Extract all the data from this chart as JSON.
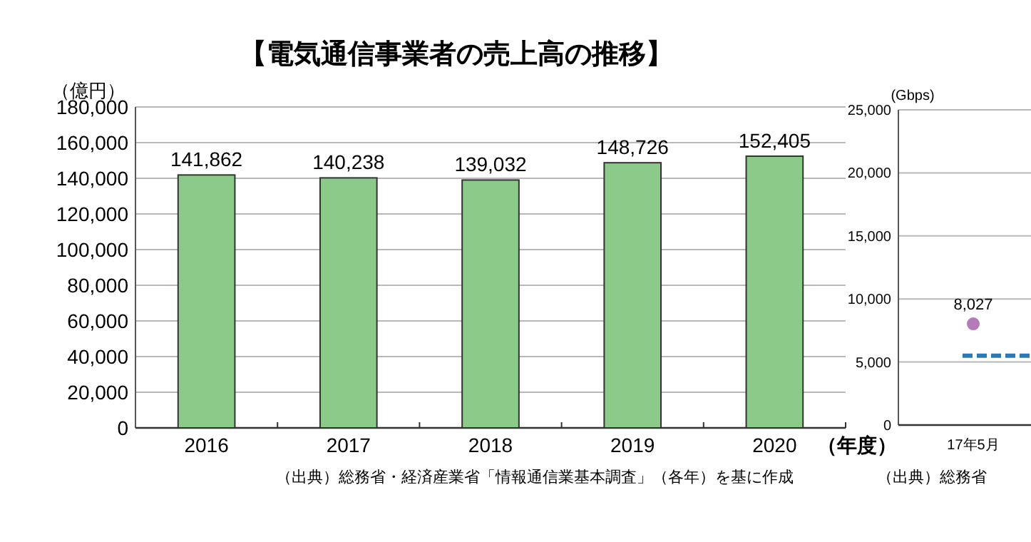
{
  "chart_data": [
    {
      "type": "bar",
      "title": "【電気通信事業者の売上高の推移】",
      "ylabel": "（億円）",
      "xlabel": "（年度）",
      "categories": [
        "2016",
        "2017",
        "2018",
        "2019",
        "2020"
      ],
      "series": [
        {
          "color": "#8cca8a",
          "values": [
            141862,
            140238,
            139032,
            148726,
            152405
          ],
          "value_labels": [
            "141,862",
            "140,238",
            "139,032",
            "148,726",
            "152,405"
          ]
        }
      ],
      "ylim": [
        0,
        180000
      ],
      "yticks": [
        {
          "value": 0,
          "label": "0"
        },
        {
          "value": 20000,
          "label": "20,000"
        },
        {
          "value": 40000,
          "label": "40,000"
        },
        {
          "value": 60000,
          "label": "60,000"
        },
        {
          "value": 80000,
          "label": "80,000"
        },
        {
          "value": 100000,
          "label": "100,000"
        },
        {
          "value": 120000,
          "label": "120,000"
        },
        {
          "value": 140000,
          "label": "140,000"
        },
        {
          "value": 160000,
          "label": "160,000"
        },
        {
          "value": 180000,
          "label": "180,000"
        }
      ],
      "grid": "y",
      "annotations": [
        "（出典）総務省・経済産業省「情報通信業基本調査」（各年）を基に作成"
      ]
    },
    {
      "type": "line",
      "ylabel": "(Gbps)",
      "categories": [
        "17年5月"
      ],
      "series": [
        {
          "color": "#b57ab8",
          "values": [
            8027
          ],
          "value_labels": [
            "8,027"
          ]
        }
      ],
      "marker": "circle",
      "ylim": [
        0,
        25000
      ],
      "yticks": [
        {
          "value": 0,
          "label": "0"
        },
        {
          "value": 5000,
          "label": "5,000"
        },
        {
          "value": 10000,
          "label": "10,000"
        },
        {
          "value": 15000,
          "label": "15,000"
        },
        {
          "value": 20000,
          "label": "20,000"
        },
        {
          "value": 25000,
          "label": "25,000"
        }
      ],
      "grid": "y",
      "ref_lines": [
        {
          "axis": "y",
          "value": 5500,
          "label": null,
          "color": "#2a7ab8",
          "line_style": "dashed"
        }
      ],
      "annotations": [
        "（出典）総務省"
      ]
    }
  ]
}
